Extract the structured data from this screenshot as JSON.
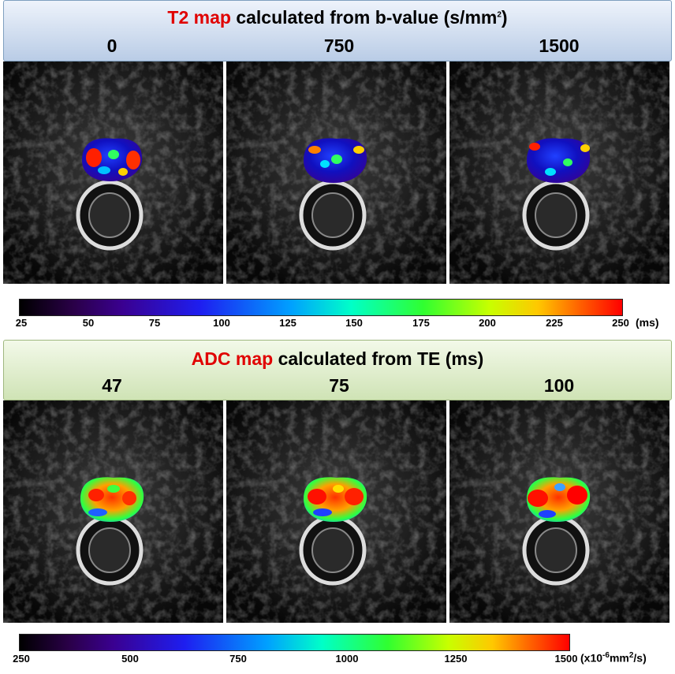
{
  "t2": {
    "title_red": "T2 map",
    "title_rest": "calculated from b-value (s/mm",
    "title_sup": "2",
    "title_close": ")",
    "columns": [
      "0",
      "750",
      "1500"
    ],
    "colorbar": {
      "ticks": [
        "25",
        "50",
        "75",
        "100",
        "125",
        "150",
        "175",
        "200",
        "225",
        "250"
      ],
      "unit": "(ms)"
    }
  },
  "adc": {
    "title_red": "ADC map",
    "title_rest": "calculated from TE (ms)",
    "columns": [
      "47",
      "75",
      "100"
    ],
    "colorbar": {
      "ticks": [
        "250",
        "500",
        "750",
        "1000",
        "1250",
        "1500"
      ],
      "unit_pre": "(x10",
      "unit_sup1": "-6",
      "unit_mid": "mm",
      "unit_sup2": "2",
      "unit_post": "/s)"
    }
  },
  "colors": {
    "title_red": "#e00000",
    "t2_header": "#b9cce6",
    "adc_header": "#cfe3b5"
  }
}
